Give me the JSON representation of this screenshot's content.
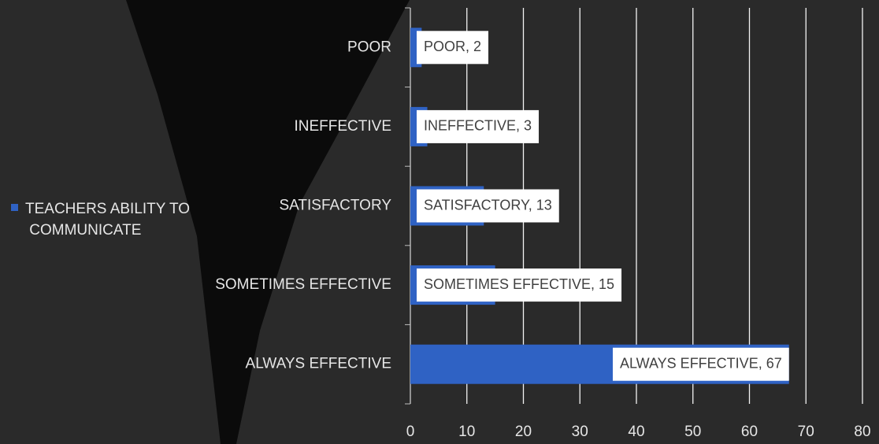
{
  "chart_data": {
    "type": "bar",
    "orientation": "horizontal",
    "categories": [
      "POOR",
      "INEFFECTIVE",
      "SATISFACTORY",
      "SOMETIMES EFFECTIVE",
      "ALWAYS EFFECTIVE"
    ],
    "series": [
      {
        "name": "TEACHERS ABILITY TO COMMUNICATE",
        "color": "#2f62c4",
        "values": [
          2,
          3,
          13,
          15,
          67
        ],
        "value_labels": [
          "POOR, 2",
          "INEFFECTIVE, 3",
          "SATISFACTORY, 13",
          "SOMETIMES EFFECTIVE, 15",
          "ALWAYS EFFECTIVE, 67"
        ]
      }
    ],
    "xlim": [
      0,
      80
    ],
    "xticks": [
      0,
      10,
      20,
      30,
      40,
      50,
      60,
      70,
      80
    ],
    "grid": true,
    "legend": "left"
  }
}
